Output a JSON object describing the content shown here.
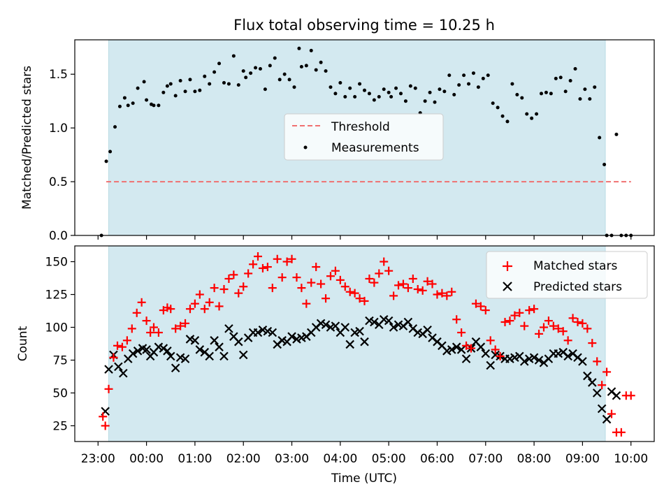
{
  "chart_data": [
    {
      "type": "scatter",
      "title": "Flux total observing time = 10.25 h",
      "ylabel": "Matched/Predicted stars",
      "xlim_hours": [
        -1.48,
        10.48
      ],
      "ylim": [
        0,
        1.82
      ],
      "yticks": [
        "0.0",
        "0.5",
        "1.0",
        "1.5"
      ],
      "ytick_values": [
        0,
        0.5,
        1.0,
        1.5
      ],
      "grid": false,
      "legend_position": "center",
      "shaded_interval_hours": [
        -0.78,
        9.47
      ],
      "shade_color": "#d3e9f0",
      "series": [
        {
          "name": "Threshold",
          "style": "dashed-line",
          "color": "#f07070",
          "x": [
            -0.83,
            10.0
          ],
          "values": [
            0.5,
            0.5
          ]
        },
        {
          "name": "Measurements",
          "style": "dot",
          "color": "#000000",
          "x": [
            -0.93,
            -0.83,
            -0.75,
            -0.65,
            -0.55,
            -0.45,
            -0.38,
            -0.28,
            -0.18,
            -0.05,
            0.0,
            0.1,
            0.15,
            0.25,
            0.35,
            0.43,
            0.5,
            0.6,
            0.7,
            0.8,
            0.9,
            1.0,
            1.1,
            1.2,
            1.3,
            1.4,
            1.5,
            1.6,
            1.7,
            1.8,
            1.9,
            2.0,
            2.05,
            2.15,
            2.25,
            2.35,
            2.45,
            2.55,
            2.65,
            2.75,
            2.85,
            2.95,
            3.05,
            3.15,
            3.2,
            3.3,
            3.4,
            3.5,
            3.6,
            3.7,
            3.8,
            3.9,
            4.0,
            4.1,
            4.2,
            4.3,
            4.4,
            4.5,
            4.6,
            4.7,
            4.8,
            4.9,
            5.0,
            5.05,
            5.15,
            5.25,
            5.35,
            5.45,
            5.55,
            5.65,
            5.75,
            5.85,
            5.95,
            6.05,
            6.15,
            6.25,
            6.35,
            6.45,
            6.55,
            6.65,
            6.75,
            6.85,
            6.95,
            7.05,
            7.15,
            7.25,
            7.35,
            7.45,
            7.55,
            7.65,
            7.75,
            7.85,
            7.95,
            8.05,
            8.15,
            8.25,
            8.35,
            8.45,
            8.55,
            8.65,
            8.75,
            8.85,
            8.95,
            9.05,
            9.15,
            9.25,
            9.35,
            9.45,
            9.5,
            9.6,
            9.7,
            9.8,
            9.9,
            10.0
          ],
          "values": [
            0.0,
            0.69,
            0.78,
            1.01,
            1.2,
            1.28,
            1.21,
            1.23,
            1.37,
            1.43,
            1.26,
            1.22,
            1.21,
            1.21,
            1.33,
            1.39,
            1.41,
            1.3,
            1.44,
            1.34,
            1.45,
            1.34,
            1.35,
            1.48,
            1.41,
            1.52,
            1.6,
            1.42,
            1.41,
            1.67,
            1.4,
            1.53,
            1.47,
            1.51,
            1.56,
            1.55,
            1.36,
            1.58,
            1.65,
            1.45,
            1.5,
            1.45,
            1.38,
            1.74,
            1.57,
            1.58,
            1.72,
            1.54,
            1.61,
            1.53,
            1.38,
            1.32,
            1.42,
            1.29,
            1.37,
            1.29,
            1.41,
            1.35,
            1.32,
            1.26,
            1.29,
            1.36,
            1.33,
            1.29,
            1.37,
            1.32,
            1.25,
            1.39,
            1.37,
            1.14,
            1.25,
            1.33,
            1.24,
            1.36,
            1.34,
            1.49,
            1.31,
            1.4,
            1.49,
            1.41,
            1.51,
            1.38,
            1.46,
            1.49,
            1.23,
            1.19,
            1.11,
            1.06,
            1.41,
            1.31,
            1.28,
            1.13,
            1.09,
            1.13,
            1.32,
            1.33,
            1.32,
            1.46,
            1.47,
            1.34,
            1.44,
            1.55,
            1.27,
            1.36,
            1.27,
            1.38,
            0.91,
            0.66,
            0.0,
            0.0,
            0.94,
            0.0,
            0.0,
            0.0
          ]
        }
      ]
    },
    {
      "type": "scatter",
      "xlabel": "Time (UTC)",
      "ylabel": "Count",
      "xlim_hours": [
        -1.48,
        10.48
      ],
      "ylim": [
        13,
        162
      ],
      "yticks": [
        "25",
        "50",
        "75",
        "100",
        "125",
        "150"
      ],
      "ytick_values": [
        25,
        50,
        75,
        100,
        125,
        150
      ],
      "xticks": [
        "23:00",
        "00:00",
        "01:00",
        "02:00",
        "03:00",
        "04:00",
        "05:00",
        "06:00",
        "07:00",
        "08:00",
        "09:00",
        "10:00"
      ],
      "xtick_hours": [
        -1,
        0,
        1,
        2,
        3,
        4,
        5,
        6,
        7,
        8,
        9,
        10
      ],
      "grid": false,
      "legend_position": "top-right",
      "shaded_interval_hours": [
        -0.78,
        9.47
      ],
      "series": [
        {
          "name": "Matched stars",
          "style": "plus",
          "color": "#ff0000",
          "x": [
            -0.9,
            -0.85,
            -0.78,
            -0.68,
            -0.6,
            -0.5,
            -0.4,
            -0.3,
            -0.2,
            -0.1,
            0.0,
            0.08,
            0.15,
            0.25,
            0.35,
            0.43,
            0.5,
            0.6,
            0.7,
            0.8,
            0.9,
            1.0,
            1.1,
            1.2,
            1.3,
            1.4,
            1.5,
            1.6,
            1.7,
            1.8,
            1.9,
            2.0,
            2.1,
            2.2,
            2.3,
            2.4,
            2.5,
            2.6,
            2.7,
            2.8,
            2.9,
            3.0,
            3.1,
            3.2,
            3.3,
            3.4,
            3.5,
            3.6,
            3.7,
            3.8,
            3.9,
            4.0,
            4.1,
            4.2,
            4.3,
            4.4,
            4.5,
            4.6,
            4.7,
            4.8,
            4.9,
            5.0,
            5.1,
            5.2,
            5.3,
            5.4,
            5.5,
            5.6,
            5.7,
            5.8,
            5.9,
            6.0,
            6.1,
            6.2,
            6.3,
            6.4,
            6.5,
            6.6,
            6.7,
            6.8,
            6.9,
            7.0,
            7.1,
            7.2,
            7.3,
            7.4,
            7.5,
            7.6,
            7.7,
            7.8,
            7.9,
            8.0,
            8.1,
            8.2,
            8.3,
            8.4,
            8.5,
            8.6,
            8.7,
            8.8,
            8.9,
            9.0,
            9.1,
            9.2,
            9.3,
            9.4,
            9.5,
            9.6,
            9.7,
            9.8,
            9.9,
            10.0
          ],
          "values": [
            32,
            25,
            53,
            77,
            86,
            85,
            90,
            99,
            111,
            119,
            105,
            96,
            100,
            96,
            113,
            115,
            114,
            99,
            101,
            103,
            114,
            118,
            125,
            114,
            119,
            130,
            116,
            129,
            137,
            140,
            126,
            131,
            141,
            148,
            154,
            145,
            146,
            130,
            152,
            138,
            150,
            152,
            138,
            130,
            118,
            134,
            146,
            133,
            122,
            139,
            143,
            136,
            131,
            127,
            126,
            122,
            120,
            137,
            134,
            141,
            150,
            143,
            124,
            132,
            133,
            130,
            137,
            129,
            128,
            135,
            133,
            125,
            126,
            124,
            127,
            106,
            96,
            86,
            84,
            118,
            116,
            113,
            90,
            83,
            78,
            104,
            105,
            109,
            111,
            101,
            113,
            114,
            95,
            100,
            105,
            101,
            99,
            97,
            90,
            107,
            104,
            103,
            99,
            88,
            74,
            56,
            66,
            34,
            20,
            20,
            48,
            48
          ]
        },
        {
          "name": "Predicted stars",
          "style": "x",
          "color": "#000000",
          "x": [
            -0.85,
            -0.78,
            -0.68,
            -0.58,
            -0.48,
            -0.38,
            -0.28,
            -0.18,
            -0.08,
            0.0,
            0.08,
            0.15,
            0.25,
            0.35,
            0.43,
            0.5,
            0.6,
            0.7,
            0.8,
            0.9,
            1.0,
            1.1,
            1.2,
            1.3,
            1.4,
            1.5,
            1.6,
            1.7,
            1.8,
            1.9,
            2.0,
            2.1,
            2.2,
            2.3,
            2.4,
            2.5,
            2.6,
            2.7,
            2.8,
            2.9,
            3.0,
            3.1,
            3.2,
            3.3,
            3.4,
            3.5,
            3.6,
            3.7,
            3.8,
            3.9,
            4.0,
            4.1,
            4.2,
            4.3,
            4.4,
            4.5,
            4.6,
            4.7,
            4.8,
            4.9,
            5.0,
            5.1,
            5.2,
            5.3,
            5.4,
            5.5,
            5.6,
            5.7,
            5.8,
            5.9,
            6.0,
            6.1,
            6.2,
            6.3,
            6.4,
            6.5,
            6.6,
            6.7,
            6.8,
            6.9,
            7.0,
            7.1,
            7.2,
            7.3,
            7.4,
            7.5,
            7.6,
            7.7,
            7.8,
            7.9,
            8.0,
            8.1,
            8.2,
            8.3,
            8.4,
            8.5,
            8.6,
            8.7,
            8.8,
            8.9,
            9.0,
            9.1,
            9.2,
            9.3,
            9.4,
            9.5,
            9.6,
            9.7
          ],
          "values": [
            36,
            68,
            79,
            70,
            65,
            76,
            80,
            82,
            84,
            83,
            78,
            81,
            85,
            84,
            82,
            78,
            69,
            77,
            76,
            91,
            90,
            83,
            81,
            78,
            90,
            85,
            78,
            99,
            93,
            89,
            79,
            92,
            96,
            96,
            98,
            97,
            96,
            87,
            90,
            89,
            93,
            91,
            92,
            93,
            96,
            100,
            103,
            102,
            100,
            101,
            96,
            100,
            87,
            96,
            97,
            89,
            105,
            104,
            102,
            106,
            105,
            100,
            102,
            101,
            104,
            99,
            96,
            95,
            98,
            92,
            89,
            86,
            82,
            83,
            85,
            83,
            76,
            84,
            89,
            85,
            80,
            71,
            79,
            78,
            76,
            76,
            77,
            78,
            74,
            76,
            77,
            75,
            73,
            76,
            80,
            80,
            81,
            78,
            80,
            77,
            74,
            63,
            58,
            50,
            38,
            30,
            51,
            48
          ]
        }
      ]
    }
  ]
}
